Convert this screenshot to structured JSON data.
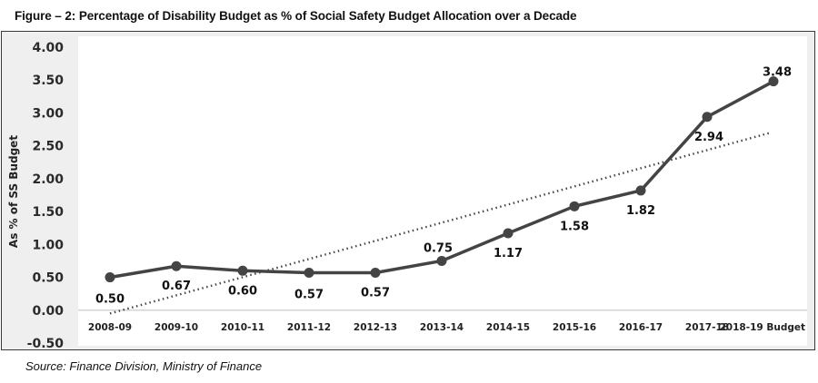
{
  "figure": {
    "title": "Figure – 2: Percentage of Disability Budget as % of Social Safety Budget Allocation over a Decade",
    "source": "Source: Finance Division, Ministry of Finance"
  },
  "chart_data": {
    "type": "line",
    "title": "Figure – 2: Percentage of Disability Budget as % of Social Safety Budget Allocation over a Decade",
    "xlabel": "",
    "ylabel": "As % of SS Budget",
    "categories": [
      "2008-09",
      "2009-10",
      "2010-11",
      "2011-12",
      "2012-13",
      "2013-14",
      "2014-15",
      "2015-16",
      "2016-17",
      "2017-18",
      "2018-19 Budget"
    ],
    "series": [
      {
        "name": "Disability budget as % of SS budget",
        "values": [
          0.5,
          0.67,
          0.6,
          0.57,
          0.57,
          0.75,
          1.17,
          1.58,
          1.82,
          2.94,
          3.48
        ],
        "data_labels": [
          "0.50",
          "0.67",
          "0.60",
          "0.57",
          "0.57",
          "0.75",
          "1.17",
          "1.58",
          "1.82",
          "2.94",
          "3.48"
        ],
        "style": "solid line with circle markers",
        "color": "#444444"
      },
      {
        "name": "Linear trendline",
        "start": -0.05,
        "end": 2.7,
        "style": "dotted",
        "color": "#444444"
      }
    ],
    "yticks": [
      "4.00",
      "3.50",
      "3.00",
      "2.50",
      "2.00",
      "1.50",
      "1.00",
      "0.50",
      "0.00",
      "-0.50"
    ],
    "ylim": [
      -0.5,
      4.0
    ],
    "grid": false,
    "legend": "none"
  }
}
